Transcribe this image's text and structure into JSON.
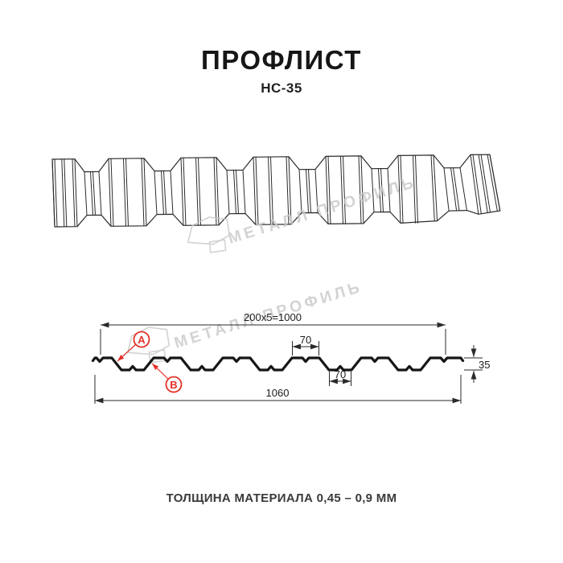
{
  "title": "ПРОФЛИСТ",
  "subtitle": "НС-35",
  "watermark": {
    "text": "МЕТАЛЛ ПРОФИЛЬ"
  },
  "cross_section": {
    "dim_top_width": "200x5=1000",
    "dim_crest_width": "70",
    "dim_trough_width": "70",
    "dim_total_width": "1060",
    "dim_height": "35",
    "label_a": "А",
    "label_b": "В"
  },
  "footer": "ТОЛЩИНА МАТЕРИАЛА 0,45 – 0,9 ММ",
  "colors": {
    "accent_red": "#e53026",
    "line_dark": "#1c1c1c",
    "watermark_gray": "#c9c9c9"
  }
}
